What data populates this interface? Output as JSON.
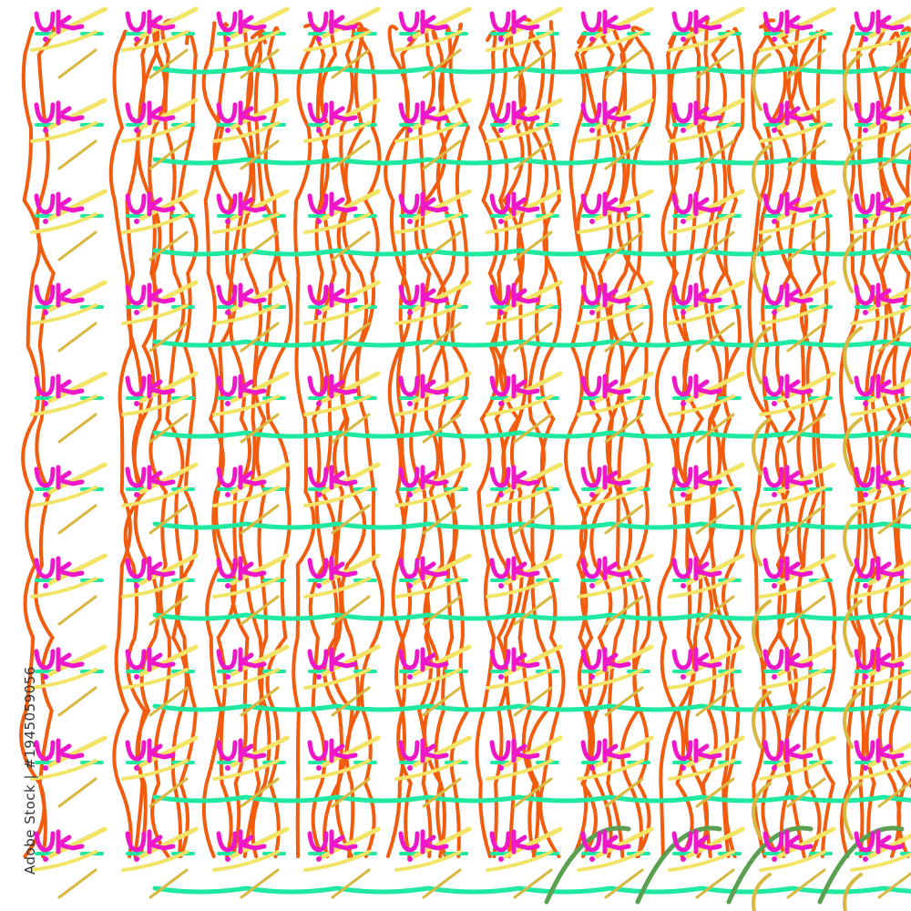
{
  "image": {
    "description_type": "abstract repeating brush-stroke pattern",
    "watermark": "Adobe Stock | #1945059056",
    "colors": {
      "background": "#ffffff",
      "orange": "#f25c0f",
      "green": "#1fe8a0",
      "yellow": "#f2e466",
      "gold": "#d8b840",
      "magenta": "#ee18c8",
      "dark_green": "#5aa050"
    },
    "grid": {
      "columns": 10,
      "rows": 10
    }
  }
}
